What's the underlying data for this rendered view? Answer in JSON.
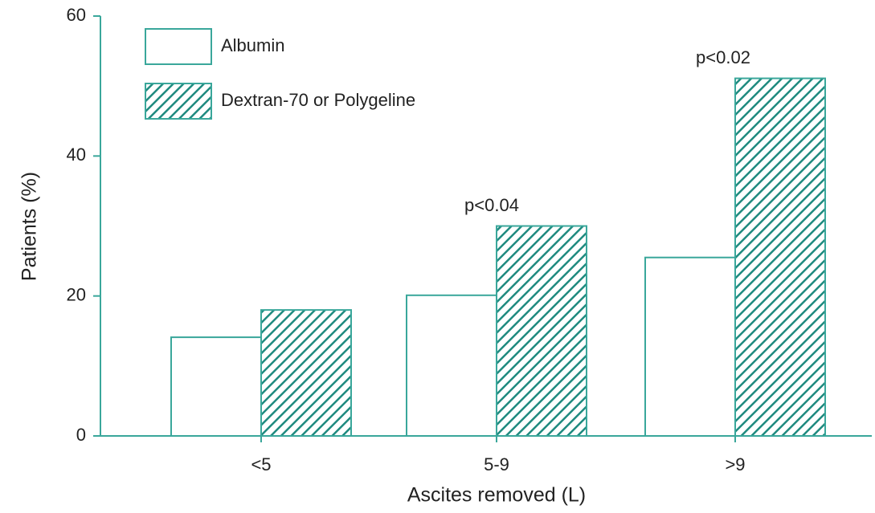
{
  "chart_data": {
    "type": "bar",
    "x_label": "Ascites removed (L)",
    "y_label": "Patients (%)",
    "categories": [
      "<5",
      "5-9",
      ">9"
    ],
    "series": [
      {
        "name": "Albumin",
        "color": "#3aa79b",
        "pattern": "none",
        "values": [
          14.1,
          20.1,
          25.5
        ]
      },
      {
        "name": "Dextran-70 or Polygeline",
        "color": "#3aa79b",
        "pattern": "hatch",
        "values": [
          18.0,
          30.0,
          51.1
        ]
      }
    ],
    "annotations": [
      "p<0.04",
      "p<0.02"
    ],
    "ylim": [
      0,
      60
    ],
    "yticks": [
      0,
      20,
      40,
      60
    ],
    "legend": "top-left"
  }
}
